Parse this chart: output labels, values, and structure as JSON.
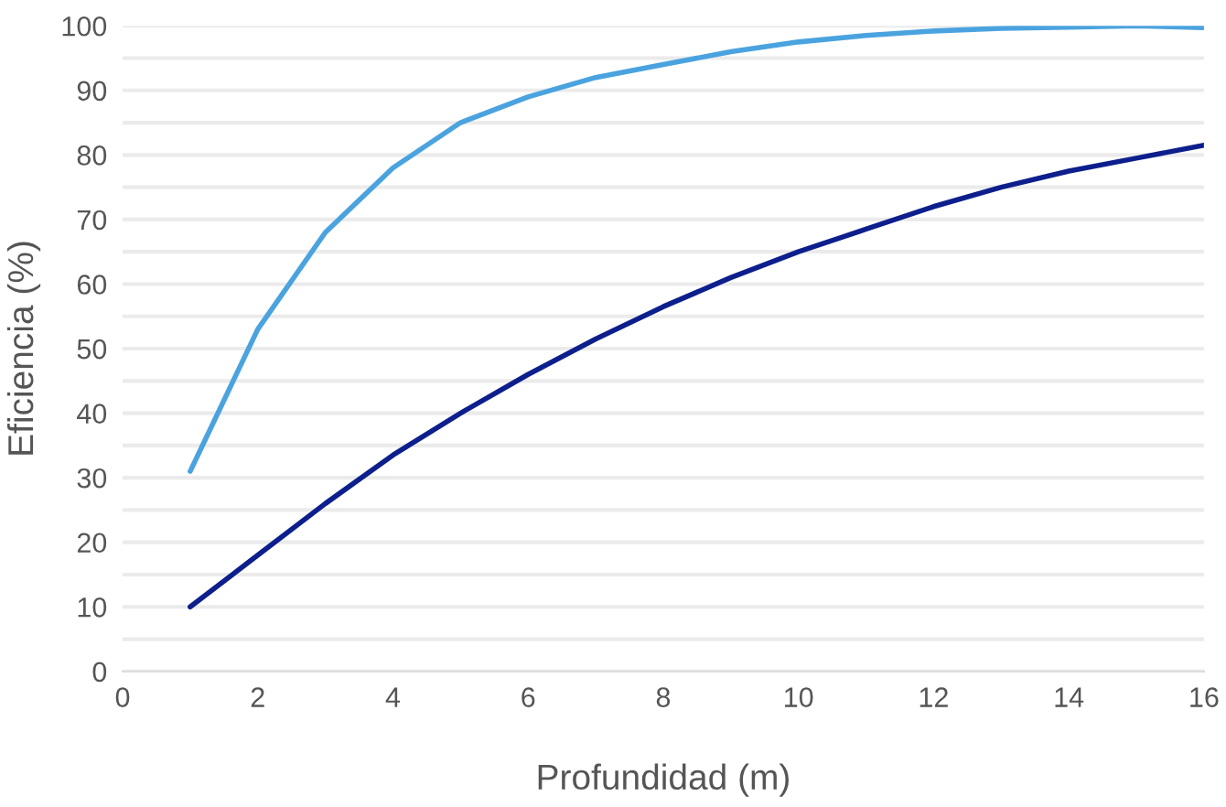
{
  "chart_data": {
    "type": "line",
    "xlabel": "Profundidad (m)",
    "ylabel": "Eficiencia (%)",
    "x": [
      1,
      2,
      3,
      4,
      5,
      6,
      7,
      8,
      9,
      10,
      11,
      12,
      13,
      14,
      15,
      16
    ],
    "series": [
      {
        "color": "#4aa3df",
        "values": [
          31,
          53,
          68,
          78,
          85,
          89,
          92,
          94,
          96,
          97.5,
          98.5,
          99.2,
          99.6,
          99.8,
          100,
          99.7
        ]
      },
      {
        "color": "#0d1f8c",
        "values": [
          10,
          18,
          26,
          33.5,
          40,
          46,
          51.5,
          56.5,
          61,
          65,
          68.5,
          72,
          75,
          77.5,
          79.5,
          81.5
        ]
      }
    ],
    "xlim": [
      0,
      16
    ],
    "xticks": [
      0,
      2,
      4,
      6,
      8,
      10,
      12,
      14,
      16
    ],
    "ylim": [
      0,
      100
    ],
    "yticks": [
      0,
      {
        "value": 5,
        "label": null
      },
      10,
      {
        "value": 15,
        "label": null
      },
      20,
      {
        "value": 25,
        "label": null
      },
      30,
      {
        "value": 35,
        "label": null
      },
      40,
      {
        "value": 45,
        "label": null
      },
      50,
      {
        "value": 55,
        "label": null
      },
      60,
      {
        "value": 65,
        "label": null
      },
      70,
      {
        "value": 75,
        "label": null
      },
      80,
      {
        "value": 85,
        "label": null
      },
      90,
      {
        "value": 95,
        "label": null
      },
      100
    ],
    "grid": "y",
    "legend": false,
    "marker": "none",
    "line_style": "solid"
  }
}
